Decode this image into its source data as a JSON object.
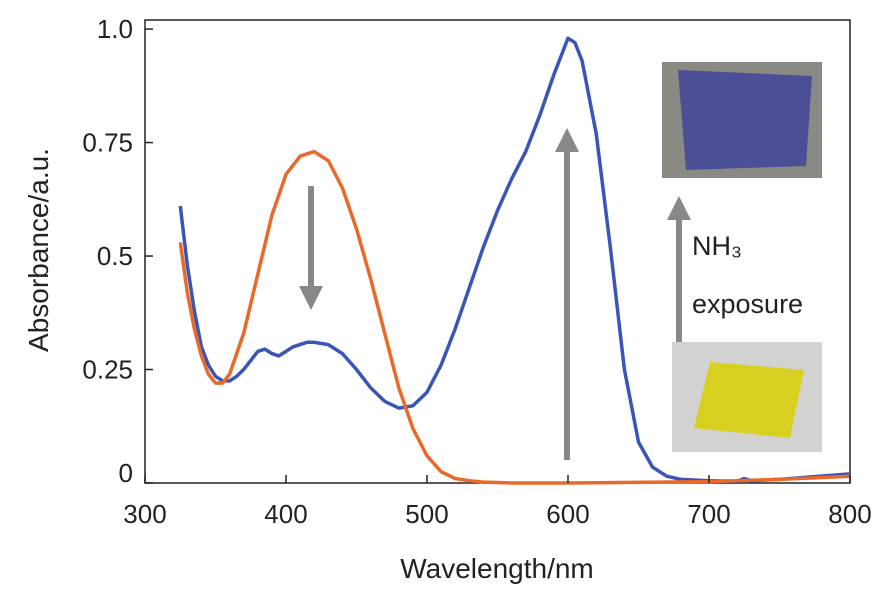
{
  "chart_data": {
    "type": "line",
    "x_label": "Wavelength/nm",
    "y_label": "Absorbance/a.u.",
    "annotations": [
      "NH₃",
      "exposure"
    ],
    "xlim": [
      300,
      800
    ],
    "xticks": [
      300,
      400,
      500,
      600,
      700,
      800
    ],
    "ylim": [
      0,
      1.02
    ],
    "yticks": [
      0,
      0.25,
      0.5,
      0.75,
      {
        "value": 1,
        "label": "1.0"
      }
    ],
    "series": [
      {
        "color": "#3a55b8",
        "x": [
          325,
          330,
          335,
          340,
          345,
          350,
          355,
          360,
          365,
          370,
          375,
          380,
          385,
          390,
          395,
          400,
          405,
          410,
          415,
          420,
          430,
          440,
          450,
          460,
          470,
          480,
          490,
          500,
          510,
          520,
          530,
          540,
          550,
          560,
          570,
          580,
          590,
          600,
          605,
          610,
          620,
          630,
          640,
          650,
          660,
          670,
          680,
          700,
          720,
          725,
          730,
          750,
          800
        ],
        "values": [
          0.61,
          0.48,
          0.38,
          0.3,
          0.26,
          0.235,
          0.225,
          0.225,
          0.235,
          0.25,
          0.27,
          0.29,
          0.295,
          0.285,
          0.28,
          0.29,
          0.3,
          0.305,
          0.31,
          0.31,
          0.305,
          0.285,
          0.25,
          0.21,
          0.18,
          0.165,
          0.17,
          0.2,
          0.26,
          0.34,
          0.43,
          0.52,
          0.6,
          0.67,
          0.73,
          0.81,
          0.9,
          0.98,
          0.97,
          0.93,
          0.77,
          0.52,
          0.25,
          0.09,
          0.035,
          0.015,
          0.008,
          0.005,
          0.004,
          0.01,
          0.005,
          0.008,
          0.02
        ]
      },
      {
        "color": "#e8692a",
        "x": [
          325,
          330,
          335,
          340,
          345,
          350,
          355,
          360,
          370,
          380,
          390,
          400,
          410,
          420,
          430,
          440,
          450,
          460,
          470,
          480,
          490,
          500,
          510,
          520,
          530,
          540,
          560,
          600,
          700,
          750,
          800
        ],
        "values": [
          0.53,
          0.42,
          0.34,
          0.28,
          0.24,
          0.22,
          0.22,
          0.24,
          0.33,
          0.46,
          0.59,
          0.68,
          0.72,
          0.73,
          0.71,
          0.65,
          0.56,
          0.45,
          0.33,
          0.21,
          0.12,
          0.06,
          0.025,
          0.01,
          0.005,
          0.002,
          0,
          0,
          0.003,
          0.008,
          0.015
        ]
      }
    ]
  }
}
